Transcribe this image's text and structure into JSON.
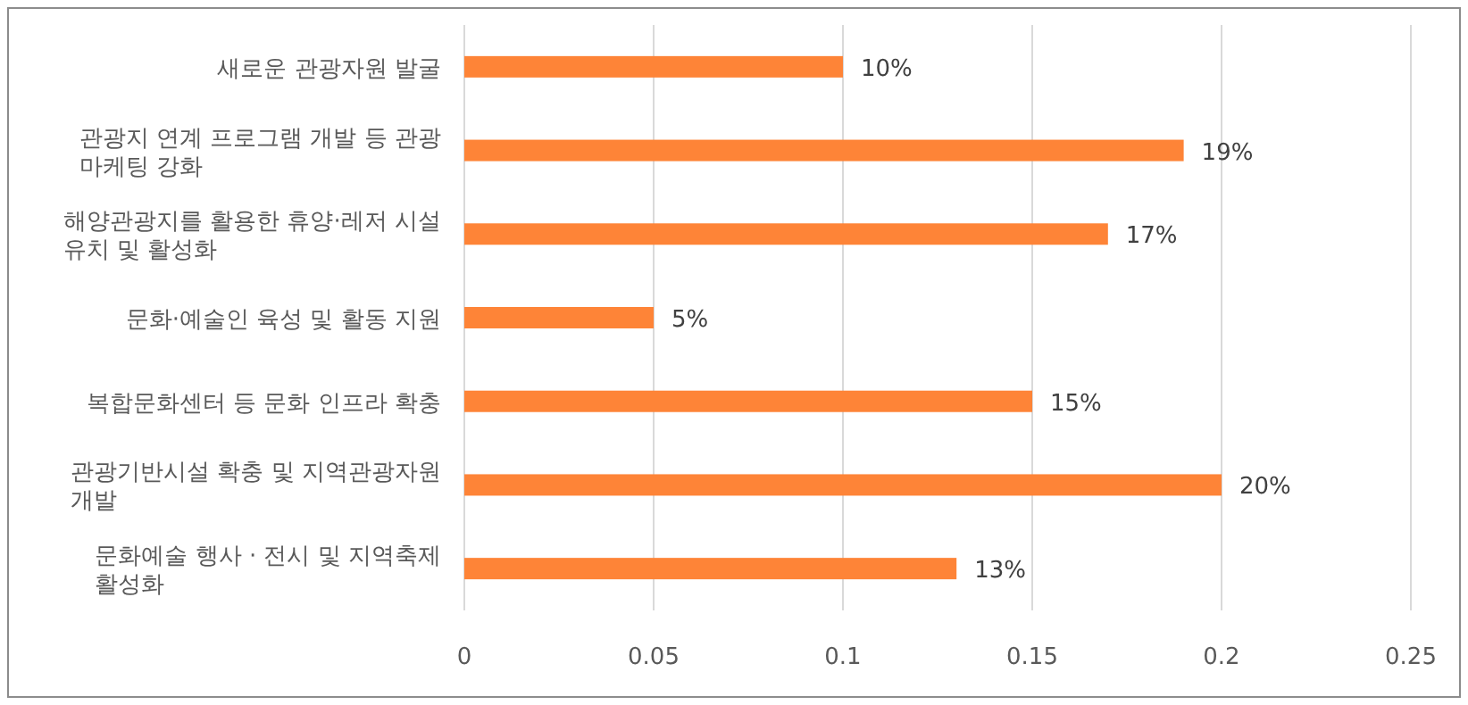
{
  "chart_data": {
    "type": "bar",
    "orientation": "horizontal",
    "categories": [
      "새로운 관광자원 발굴",
      "관광지 연계 프로그램 개발 등 관광 마케팅 강화",
      "해양관광지를 활용한 휴양·레저 시설 유치 및 활성화",
      "문화·예술인 육성 및 활동 지원",
      "복합문화센터 등 문화 인프라 확충",
      "관광기반시설 확충 및 지역관광자원 개발",
      "문화예술 행사 · 전시 및 지역축제 활성화"
    ],
    "values": [
      0.1,
      0.19,
      0.17,
      0.05,
      0.15,
      0.2,
      0.13
    ],
    "value_labels": [
      "10%",
      "19%",
      "17%",
      "5%",
      "15%",
      "20%",
      "13%"
    ],
    "color": "#fe8437",
    "xlim": [
      0,
      0.25
    ],
    "xticks": [
      0,
      0.05,
      0.1,
      0.15,
      0.2,
      0.25
    ],
    "grid": "x"
  }
}
